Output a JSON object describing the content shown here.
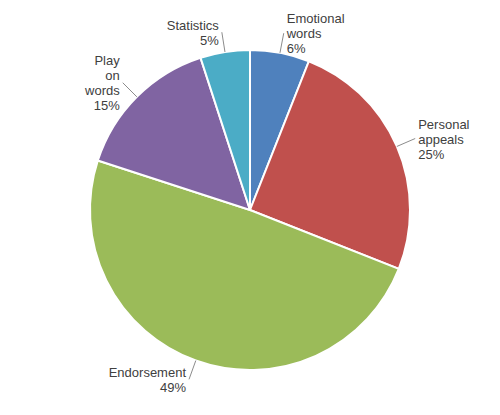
{
  "chart_data": {
    "type": "pie",
    "categories": [
      "Emotional words",
      "Personal appeals",
      "Endorsement",
      "Play on words",
      "Statistics"
    ],
    "values": [
      6,
      25,
      49,
      15,
      5
    ],
    "value_labels": [
      "6%",
      "25%",
      "49%",
      "15%",
      "5%"
    ],
    "colors": [
      "#4f81bd",
      "#c0504d",
      "#9bbb59",
      "#8064a2",
      "#4bacc6"
    ]
  }
}
